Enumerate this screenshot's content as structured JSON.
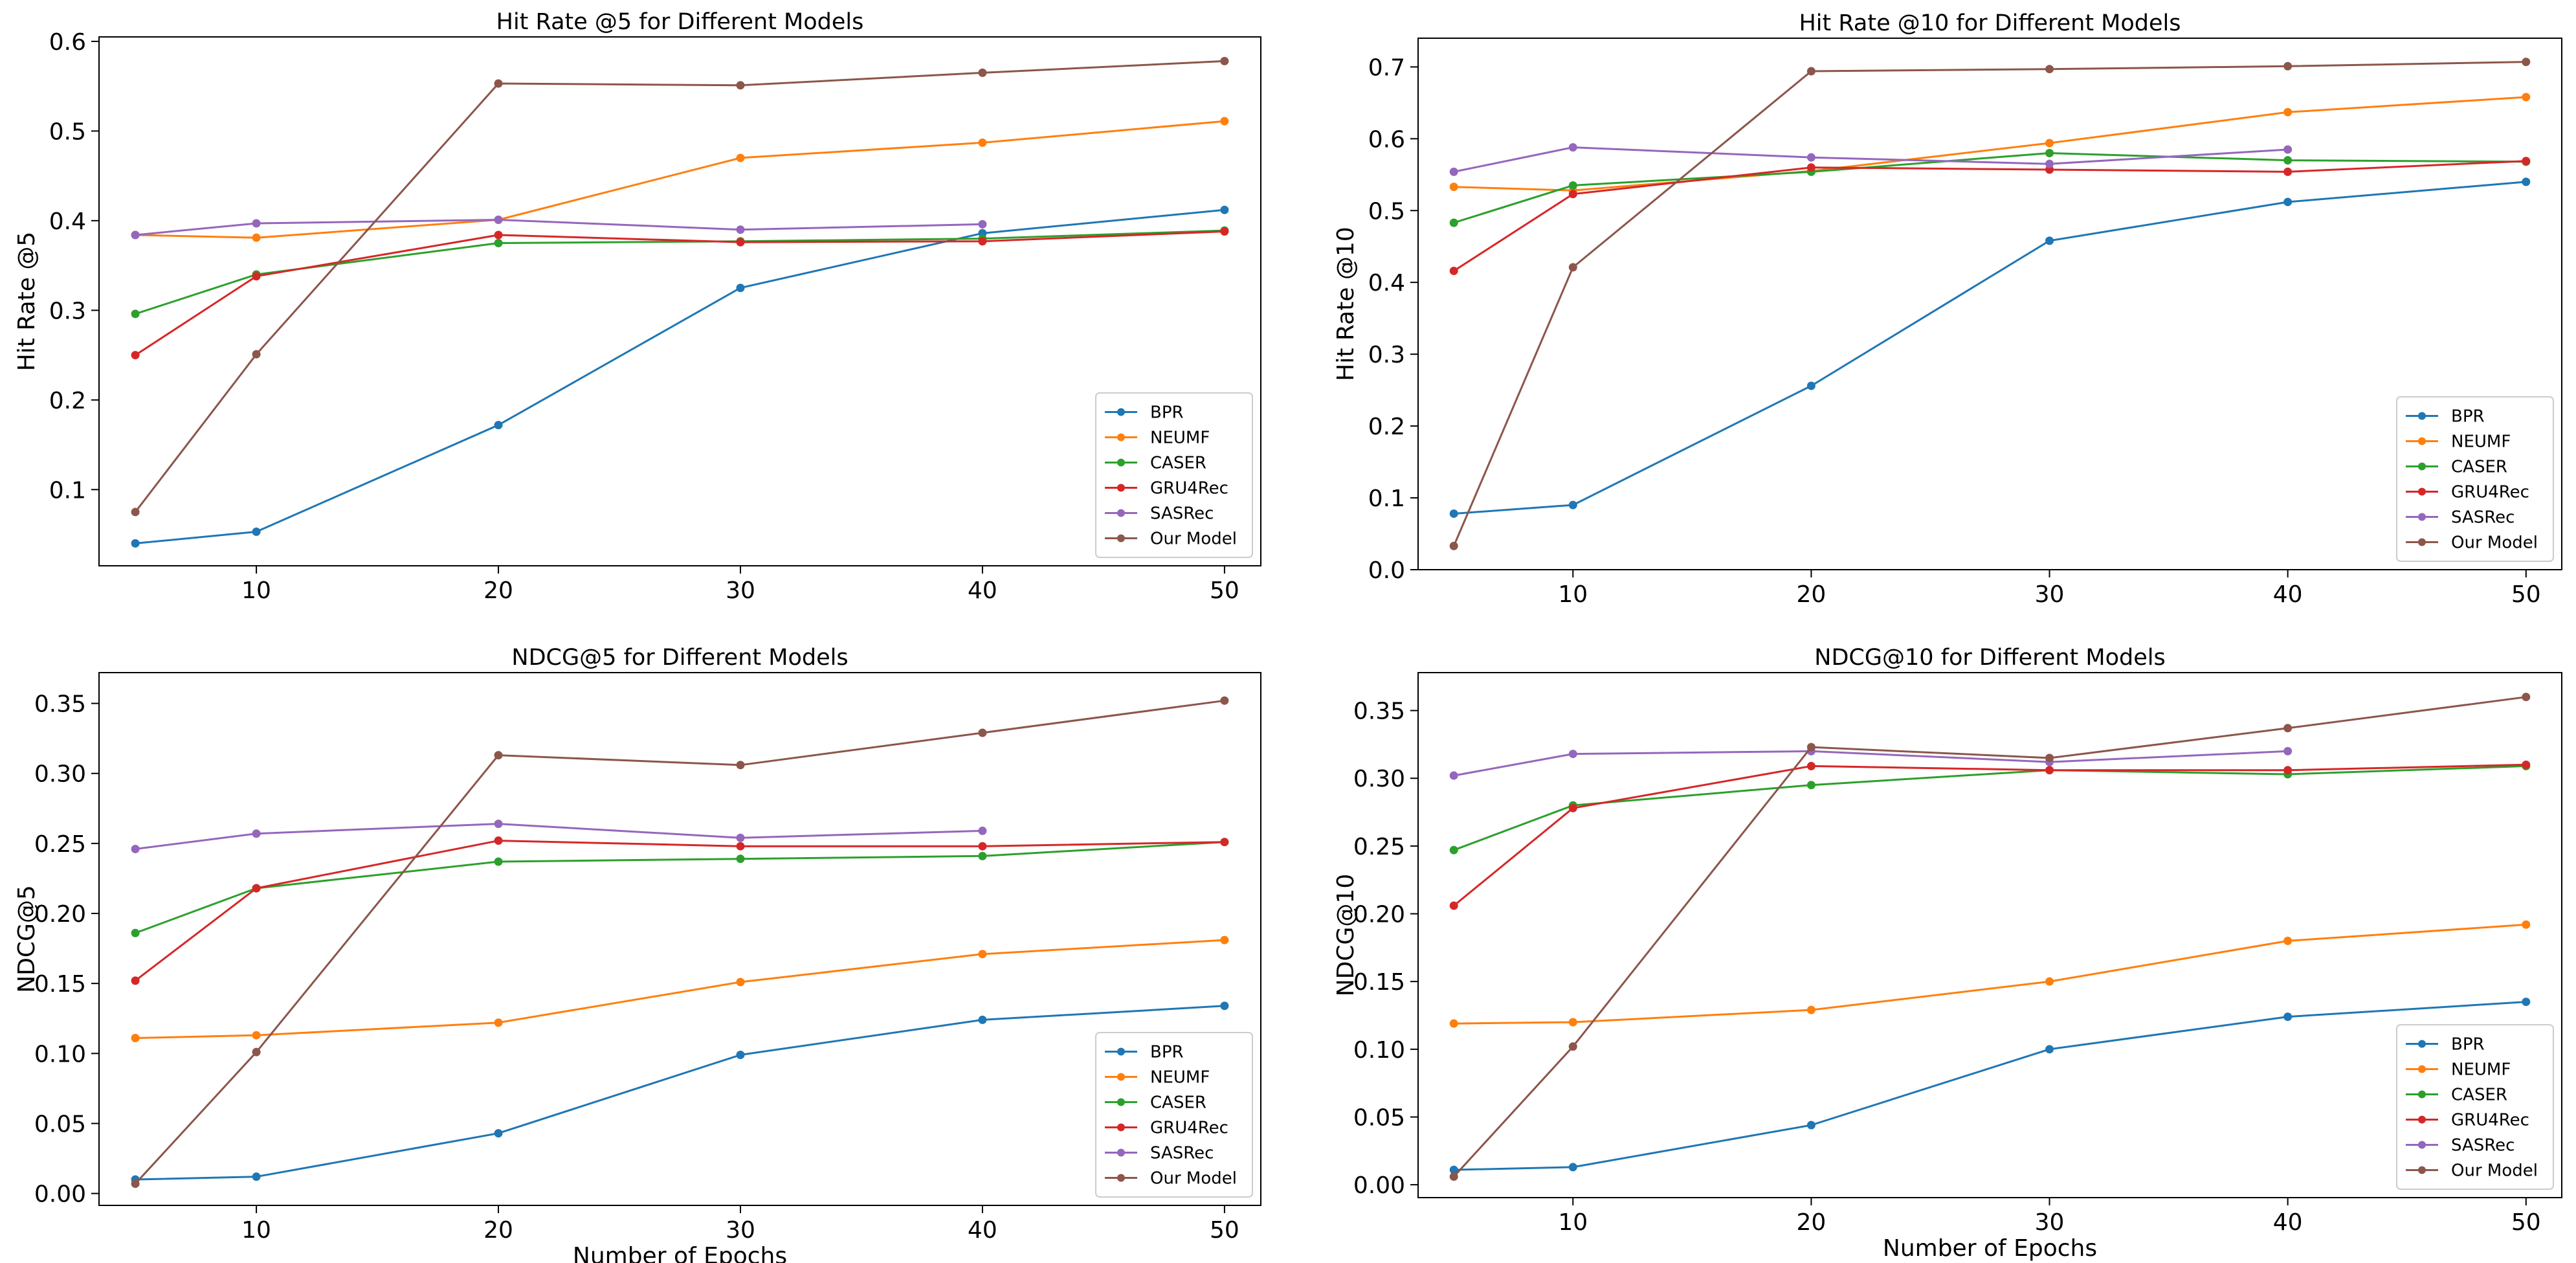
{
  "colors": {
    "BPR": "#1f77b4",
    "NEUMF": "#ff7f0e",
    "CASER": "#2ca02c",
    "GRU4Rec": "#d62728",
    "SASRec": "#9467bd",
    "Our Model": "#8c564b"
  },
  "chart_data": [
    {
      "type": "line",
      "title": "Hit Rate @5 for Different Models",
      "xlabel": "",
      "ylabel": "Hit Rate @5",
      "xlim": [
        3.5,
        51.5
      ],
      "ylim": [
        0.015,
        0.605
      ],
      "xticks": [
        10,
        20,
        30,
        40,
        50
      ],
      "xtick_labels": [
        "10",
        "20",
        "30",
        "40",
        "50"
      ],
      "yticks": [
        0.1,
        0.2,
        0.3,
        0.4,
        0.5,
        0.6
      ],
      "ytick_labels": [
        "0.1",
        "0.2",
        "0.3",
        "0.4",
        "0.5",
        "0.6"
      ],
      "legend": "lower-right",
      "x": [
        5,
        10,
        20,
        30,
        40,
        50
      ],
      "series": [
        {
          "name": "BPR",
          "x": [
            5,
            10,
            20,
            30,
            40,
            50
          ],
          "values": [
            0.04,
            0.053,
            0.172,
            0.325,
            0.386,
            0.412
          ]
        },
        {
          "name": "NEUMF",
          "x": [
            5,
            10,
            20,
            30,
            40,
            50
          ],
          "values": [
            0.384,
            0.381,
            0.401,
            0.47,
            0.487,
            0.511
          ]
        },
        {
          "name": "CASER",
          "x": [
            5,
            10,
            20,
            30,
            40,
            50
          ],
          "values": [
            0.296,
            0.34,
            0.375,
            0.377,
            0.38,
            0.389
          ]
        },
        {
          "name": "GRU4Rec",
          "x": [
            5,
            10,
            20,
            30,
            40,
            50
          ],
          "values": [
            0.25,
            0.338,
            0.384,
            0.376,
            0.377,
            0.388
          ]
        },
        {
          "name": "SASRec",
          "x": [
            5,
            10,
            20,
            30,
            40
          ],
          "values": [
            0.384,
            0.397,
            0.401,
            0.39,
            0.396
          ]
        },
        {
          "name": "Our Model",
          "x": [
            5,
            10,
            20,
            30,
            40,
            50
          ],
          "values": [
            0.075,
            0.251,
            0.553,
            0.551,
            0.565,
            0.578
          ]
        }
      ]
    },
    {
      "type": "line",
      "title": "Hit Rate @10 for Different Models",
      "xlabel": "",
      "ylabel": "Hit Rate @10",
      "xlim": [
        3.5,
        51.5
      ],
      "ylim": [
        0.0,
        0.74
      ],
      "xticks": [
        10,
        20,
        30,
        40,
        50
      ],
      "xtick_labels": [
        "10",
        "20",
        "30",
        "40",
        "50"
      ],
      "yticks": [
        0.0,
        0.1,
        0.2,
        0.3,
        0.4,
        0.5,
        0.6,
        0.7
      ],
      "ytick_labels": [
        "0.0",
        "0.1",
        "0.2",
        "0.3",
        "0.4",
        "0.5",
        "0.6",
        "0.7"
      ],
      "legend": "lower-right",
      "x": [
        5,
        10,
        20,
        30,
        40,
        50
      ],
      "series": [
        {
          "name": "BPR",
          "x": [
            5,
            10,
            20,
            30,
            40,
            50
          ],
          "values": [
            0.078,
            0.09,
            0.256,
            0.458,
            0.512,
            0.54
          ]
        },
        {
          "name": "NEUMF",
          "x": [
            5,
            10,
            20,
            30,
            40,
            50
          ],
          "values": [
            0.533,
            0.528,
            0.555,
            0.594,
            0.637,
            0.658
          ]
        },
        {
          "name": "CASER",
          "x": [
            5,
            10,
            20,
            30,
            40,
            50
          ],
          "values": [
            0.483,
            0.535,
            0.554,
            0.58,
            0.57,
            0.568
          ]
        },
        {
          "name": "GRU4Rec",
          "x": [
            5,
            10,
            20,
            30,
            40,
            50
          ],
          "values": [
            0.416,
            0.523,
            0.56,
            0.557,
            0.554,
            0.569
          ]
        },
        {
          "name": "SASRec",
          "x": [
            5,
            10,
            20,
            30,
            40
          ],
          "values": [
            0.554,
            0.588,
            0.574,
            0.565,
            0.585
          ]
        },
        {
          "name": "Our Model",
          "x": [
            5,
            10,
            20,
            30,
            40,
            50
          ],
          "values": [
            0.033,
            0.421,
            0.694,
            0.697,
            0.701,
            0.707
          ]
        }
      ]
    },
    {
      "type": "line",
      "title": "NDCG@5 for Different Models",
      "xlabel": "Number of Epochs",
      "ylabel": "NDCG@5",
      "xlim": [
        3.5,
        51.5
      ],
      "ylim": [
        -0.0085,
        0.372
      ],
      "xticks": [
        10,
        20,
        30,
        40,
        50
      ],
      "xtick_labels": [
        "10",
        "20",
        "30",
        "40",
        "50"
      ],
      "yticks": [
        0.0,
        0.05,
        0.1,
        0.15,
        0.2,
        0.25,
        0.3,
        0.35
      ],
      "ytick_labels": [
        "0.00",
        "0.05",
        "0.10",
        "0.15",
        "0.20",
        "0.25",
        "0.30",
        "0.35"
      ],
      "legend": "lower-right",
      "x": [
        5,
        10,
        20,
        30,
        40,
        50
      ],
      "series": [
        {
          "name": "BPR",
          "x": [
            5,
            10,
            20,
            30,
            40,
            50
          ],
          "values": [
            0.01,
            0.012,
            0.043,
            0.099,
            0.124,
            0.134
          ]
        },
        {
          "name": "NEUMF",
          "x": [
            5,
            10,
            20,
            30,
            40,
            50
          ],
          "values": [
            0.111,
            0.113,
            0.122,
            0.151,
            0.171,
            0.181
          ]
        },
        {
          "name": "CASER",
          "x": [
            5,
            10,
            20,
            30,
            40,
            50
          ],
          "values": [
            0.186,
            0.218,
            0.237,
            0.239,
            0.241,
            0.251
          ]
        },
        {
          "name": "GRU4Rec",
          "x": [
            5,
            10,
            20,
            30,
            40,
            50
          ],
          "values": [
            0.152,
            0.218,
            0.252,
            0.248,
            0.248,
            0.251
          ]
        },
        {
          "name": "SASRec",
          "x": [
            5,
            10,
            20,
            30,
            40
          ],
          "values": [
            0.246,
            0.257,
            0.264,
            0.254,
            0.259
          ]
        },
        {
          "name": "Our Model",
          "x": [
            5,
            10,
            20,
            30,
            40,
            50
          ],
          "values": [
            0.007,
            0.101,
            0.313,
            0.306,
            0.329,
            0.352
          ]
        }
      ]
    },
    {
      "type": "line",
      "title": "NDCG@10 for Different Models",
      "xlabel": "Number of Epochs",
      "ylabel": "NDCG@10",
      "xlim": [
        3.5,
        51.5
      ],
      "ylim": [
        -0.0095,
        0.378
      ],
      "xticks": [
        10,
        20,
        30,
        40,
        50
      ],
      "xtick_labels": [
        "10",
        "20",
        "30",
        "40",
        "50"
      ],
      "yticks": [
        0.0,
        0.05,
        0.1,
        0.15,
        0.2,
        0.25,
        0.3,
        0.35
      ],
      "ytick_labels": [
        "0.00",
        "0.05",
        "0.10",
        "0.15",
        "0.20",
        "0.25",
        "0.30",
        "0.35"
      ],
      "legend": "lower-right",
      "x": [
        5,
        10,
        20,
        30,
        40,
        50
      ],
      "series": [
        {
          "name": "BPR",
          "x": [
            5,
            10,
            20,
            30,
            40,
            50
          ],
          "values": [
            0.011,
            0.013,
            0.044,
            0.1,
            0.124,
            0.135
          ]
        },
        {
          "name": "NEUMF",
          "x": [
            5,
            10,
            20,
            30,
            40,
            50
          ],
          "values": [
            0.119,
            0.12,
            0.129,
            0.15,
            0.18,
            0.192
          ]
        },
        {
          "name": "CASER",
          "x": [
            5,
            10,
            20,
            30,
            40,
            50
          ],
          "values": [
            0.247,
            0.28,
            0.295,
            0.306,
            0.303,
            0.309
          ]
        },
        {
          "name": "GRU4Rec",
          "x": [
            5,
            10,
            20,
            30,
            40,
            50
          ],
          "values": [
            0.206,
            0.278,
            0.309,
            0.306,
            0.306,
            0.31
          ]
        },
        {
          "name": "SASRec",
          "x": [
            5,
            10,
            20,
            30,
            40
          ],
          "values": [
            0.302,
            0.318,
            0.32,
            0.312,
            0.32
          ]
        },
        {
          "name": "Our Model",
          "x": [
            5,
            10,
            20,
            30,
            40,
            50
          ],
          "values": [
            0.006,
            0.102,
            0.323,
            0.315,
            0.337,
            0.36
          ]
        }
      ]
    }
  ]
}
